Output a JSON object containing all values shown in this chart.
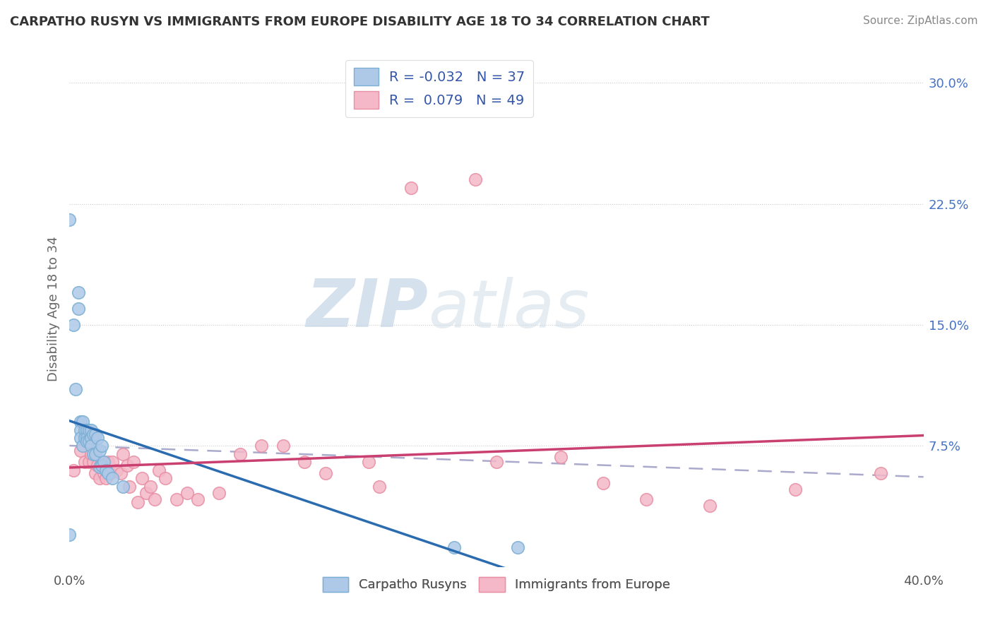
{
  "title": "CARPATHO RUSYN VS IMMIGRANTS FROM EUROPE DISABILITY AGE 18 TO 34 CORRELATION CHART",
  "source": "Source: ZipAtlas.com",
  "ylabel": "Disability Age 18 to 34",
  "xlim": [
    0.0,
    0.4
  ],
  "ylim": [
    0.0,
    0.32
  ],
  "xticks": [
    0.0,
    0.4
  ],
  "xticklabels": [
    "0.0%",
    "40.0%"
  ],
  "yticks_right": [
    0.075,
    0.15,
    0.225,
    0.3
  ],
  "ytick_labels_right": [
    "7.5%",
    "15.0%",
    "22.5%",
    "30.0%"
  ],
  "legend_r": [
    -0.032,
    0.079
  ],
  "legend_n": [
    37,
    49
  ],
  "legend_labels": [
    "Carpatho Rusyns",
    "Immigrants from Europe"
  ],
  "blue_fill": "#aec9e8",
  "pink_fill": "#f4b8c8",
  "blue_edge": "#7bafd4",
  "pink_edge": "#e88fa4",
  "blue_line_color": "#2b6cb0",
  "pink_line_color": "#c94070",
  "dashed_color": "#aaaacc",
  "watermark_zip": "ZIP",
  "watermark_atlas": "atlas",
  "blue_scatter_x": [
    0.0,
    0.0,
    0.002,
    0.003,
    0.004,
    0.004,
    0.005,
    0.005,
    0.005,
    0.006,
    0.006,
    0.007,
    0.007,
    0.008,
    0.008,
    0.008,
    0.009,
    0.009,
    0.01,
    0.01,
    0.01,
    0.011,
    0.011,
    0.012,
    0.012,
    0.013,
    0.014,
    0.014,
    0.015,
    0.015,
    0.016,
    0.017,
    0.018,
    0.02,
    0.025,
    0.18,
    0.21
  ],
  "blue_scatter_y": [
    0.02,
    0.215,
    0.15,
    0.11,
    0.17,
    0.16,
    0.09,
    0.085,
    0.08,
    0.09,
    0.075,
    0.085,
    0.08,
    0.085,
    0.08,
    0.078,
    0.085,
    0.078,
    0.085,
    0.08,
    0.075,
    0.082,
    0.07,
    0.082,
    0.07,
    0.08,
    0.072,
    0.062,
    0.075,
    0.063,
    0.065,
    0.06,
    0.058,
    0.055,
    0.05,
    0.012,
    0.012
  ],
  "pink_scatter_x": [
    0.002,
    0.005,
    0.007,
    0.008,
    0.009,
    0.01,
    0.011,
    0.012,
    0.013,
    0.014,
    0.015,
    0.016,
    0.017,
    0.018,
    0.019,
    0.02,
    0.022,
    0.024,
    0.025,
    0.027,
    0.028,
    0.03,
    0.032,
    0.034,
    0.036,
    0.038,
    0.04,
    0.042,
    0.045,
    0.05,
    0.055,
    0.06,
    0.07,
    0.08,
    0.09,
    0.1,
    0.11,
    0.12,
    0.14,
    0.145,
    0.16,
    0.19,
    0.2,
    0.23,
    0.25,
    0.27,
    0.3,
    0.34,
    0.38
  ],
  "pink_scatter_y": [
    0.06,
    0.072,
    0.065,
    0.082,
    0.065,
    0.07,
    0.065,
    0.058,
    0.063,
    0.055,
    0.065,
    0.058,
    0.055,
    0.065,
    0.058,
    0.065,
    0.06,
    0.058,
    0.07,
    0.063,
    0.05,
    0.065,
    0.04,
    0.055,
    0.046,
    0.05,
    0.042,
    0.06,
    0.055,
    0.042,
    0.046,
    0.042,
    0.046,
    0.07,
    0.075,
    0.075,
    0.065,
    0.058,
    0.065,
    0.05,
    0.235,
    0.24,
    0.065,
    0.068,
    0.052,
    0.042,
    0.038,
    0.048,
    0.058
  ]
}
